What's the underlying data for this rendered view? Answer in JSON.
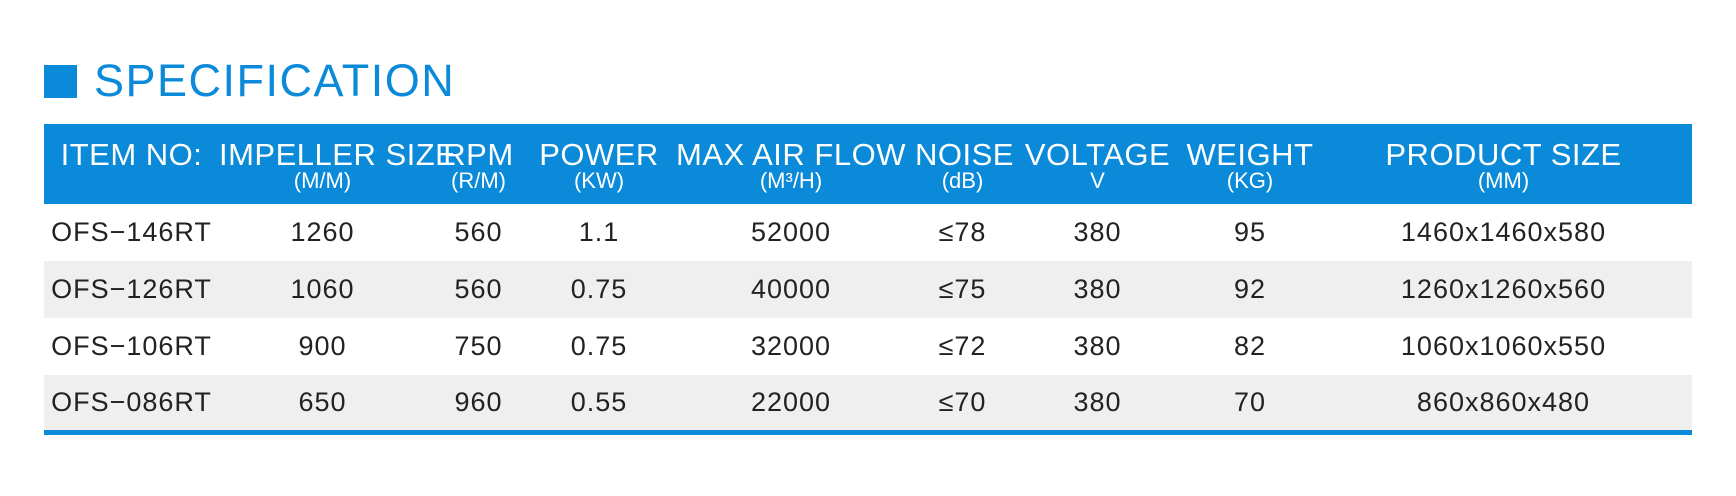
{
  "heading": "SPECIFICATION",
  "colors": {
    "accent": "#0a8ad8",
    "row_alt": "#efefef",
    "text": "#222222"
  },
  "columns": [
    {
      "label": "ITEM NO:",
      "unit": ""
    },
    {
      "label": "IMPELLER SIZE",
      "unit": "(M/M)"
    },
    {
      "label": "RPM",
      "unit": "(R/M)"
    },
    {
      "label": "POWER",
      "unit": "(KW)"
    },
    {
      "label": "MAX AIR FLOW",
      "unit": "(M³/H)"
    },
    {
      "label": "NOISE",
      "unit": "(dB)"
    },
    {
      "label": "VOLTAGE",
      "unit": "V"
    },
    {
      "label": "WEIGHT",
      "unit": "(KG)"
    },
    {
      "label": "PRODUCT SIZE",
      "unit": "(MM)"
    }
  ],
  "rows": [
    [
      "OFS−146RT",
      "1260",
      "560",
      "1.1",
      "52000",
      "≤78",
      "380",
      "95",
      "1460x1460x580"
    ],
    [
      "OFS−126RT",
      "1060",
      "560",
      "0.75",
      "40000",
      "≤75",
      "380",
      "92",
      "1260x1260x560"
    ],
    [
      "OFS−106RT",
      "900",
      "750",
      "0.75",
      "32000",
      "≤72",
      "380",
      "82",
      "1060x1060x550"
    ],
    [
      "OFS−086RT",
      "650",
      "960",
      "0.55",
      "22000",
      "≤70",
      "380",
      "70",
      "860x860x480"
    ]
  ]
}
